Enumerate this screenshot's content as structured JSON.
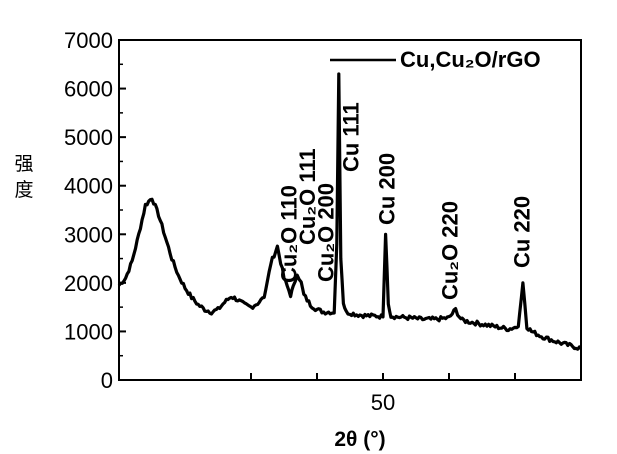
{
  "chart_data": {
    "type": "line",
    "title": "",
    "xlabel": "2θ (°)",
    "ylabel": "强度",
    "xlim": [
      10,
      80
    ],
    "ylim": [
      0,
      7000
    ],
    "x_ticks": [
      50
    ],
    "y_ticks": [
      0,
      1000,
      2000,
      3000,
      4000,
      5000,
      6000,
      7000
    ],
    "grid": false,
    "legend": {
      "position": "top-right",
      "entries": [
        "Cu,Cu₂O/rGO"
      ]
    },
    "series": [
      {
        "name": "Cu,Cu₂O/rGO",
        "x": [
          10,
          11,
          12,
          13,
          14,
          15,
          16,
          17,
          18,
          19,
          20,
          21,
          22,
          23,
          24,
          25,
          26,
          27,
          28,
          29,
          30,
          31,
          32,
          33,
          34,
          35,
          36,
          36.4,
          37,
          37.6,
          38,
          39,
          40,
          41,
          42,
          42.6,
          43,
          43.3,
          43.6,
          44,
          44.4,
          45,
          46,
          47,
          48,
          49,
          50,
          50.4,
          50.8,
          51.2,
          52,
          54,
          56,
          58,
          60,
          61,
          61.6,
          62,
          63,
          65,
          67,
          69,
          70.5,
          71.2,
          71.8,
          72.5,
          74,
          76,
          78,
          80
        ],
        "y": [
          1950,
          2100,
          2450,
          3000,
          3600,
          3750,
          3400,
          2950,
          2500,
          2150,
          1900,
          1700,
          1550,
          1450,
          1400,
          1450,
          1600,
          1720,
          1650,
          1550,
          1500,
          1580,
          1700,
          2400,
          2750,
          2100,
          1750,
          1900,
          2200,
          2000,
          1750,
          1550,
          1450,
          1400,
          1400,
          1380,
          2800,
          6300,
          2500,
          1600,
          1400,
          1380,
          1350,
          1330,
          1320,
          1320,
          1300,
          3000,
          1600,
          1320,
          1300,
          1280,
          1250,
          1250,
          1280,
          1450,
          1300,
          1230,
          1200,
          1150,
          1100,
          1050,
          1100,
          2000,
          1100,
          1000,
          900,
          800,
          720,
          650
        ]
      }
    ],
    "annotations": [
      {
        "text": "Cu₂O 110",
        "x": 36.0
      },
      {
        "text": "Cu₂O 111",
        "x": 38.8
      },
      {
        "text": "Cu₂O 200",
        "x": 41.6
      },
      {
        "text": "Cu 111",
        "x": 45.4
      },
      {
        "text": "Cu 200",
        "x": 50.8
      },
      {
        "text": "Cu₂O 220",
        "x": 60.4
      },
      {
        "text": "Cu 220",
        "x": 71.3
      }
    ]
  }
}
